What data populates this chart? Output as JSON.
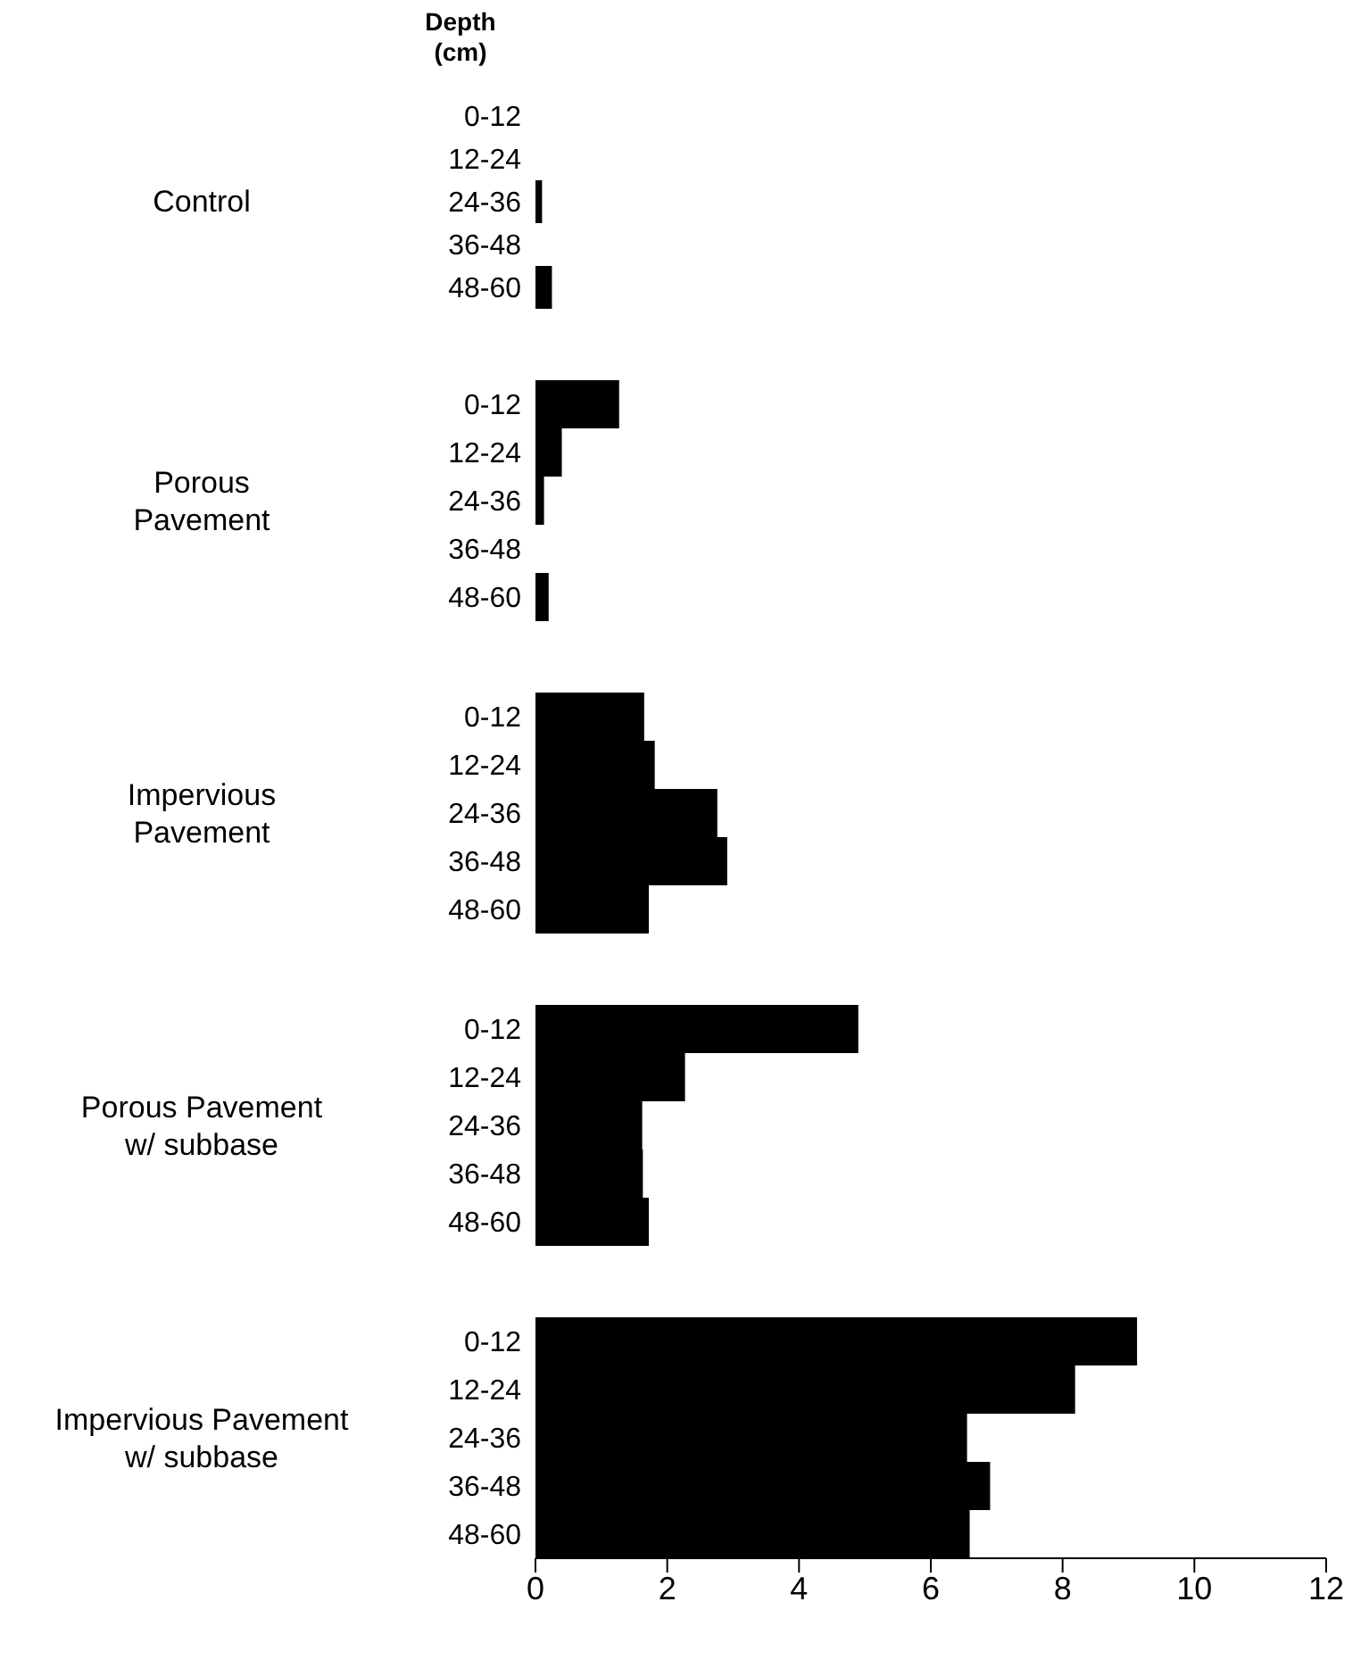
{
  "chart_data": [
    {
      "type": "bar",
      "orientation": "horizontal",
      "ylabel": "Control",
      "annotations": [
        "Depth\n(cm)"
      ],
      "categories": [
        "0-12",
        "12-24",
        "24-36",
        "36-48",
        "48-60"
      ],
      "values": [
        0,
        0,
        0.1,
        0,
        0.25
      ],
      "color": "#000000",
      "xlim": [
        0,
        12
      ],
      "xticks": [
        0,
        2,
        4,
        6,
        8,
        10,
        12
      ],
      "tick_labels": "y",
      "grid": false
    },
    {
      "type": "bar",
      "orientation": "horizontal",
      "ylabel": "Porous\nPavement",
      "categories": [
        "0-12",
        "12-24",
        "24-36",
        "36-48",
        "48-60"
      ],
      "values": [
        1.27,
        0.4,
        0.13,
        0,
        0.2
      ],
      "color": "#000000",
      "xlim": [
        0,
        12
      ],
      "xticks": [
        0,
        2,
        4,
        6,
        8,
        10,
        12
      ],
      "tick_labels": "y",
      "grid": false
    },
    {
      "type": "bar",
      "orientation": "horizontal",
      "ylabel": "Impervious\nPavement",
      "categories": [
        "0-12",
        "12-24",
        "24-36",
        "36-48",
        "48-60"
      ],
      "values": [
        1.65,
        1.81,
        2.76,
        2.91,
        1.72
      ],
      "color": "#000000",
      "xlim": [
        0,
        12
      ],
      "xticks": [
        0,
        2,
        4,
        6,
        8,
        10,
        12
      ],
      "tick_labels": "y",
      "grid": false
    },
    {
      "type": "bar",
      "orientation": "horizontal",
      "ylabel": "Porous Pavement\nw/ subbase",
      "categories": [
        "0-12",
        "12-24",
        "24-36",
        "36-48",
        "48-60"
      ],
      "values": [
        4.9,
        2.27,
        1.62,
        1.63,
        1.72
      ],
      "color": "#000000",
      "xlim": [
        0,
        12
      ],
      "xticks": [
        0,
        2,
        4,
        6,
        8,
        10,
        12
      ],
      "tick_labels": "y",
      "grid": false
    },
    {
      "type": "bar",
      "orientation": "horizontal",
      "ylabel": "Impervious Pavement\nw/ subbase",
      "categories": [
        "0-12",
        "12-24",
        "24-36",
        "36-48",
        "48-60"
      ],
      "values": [
        9.13,
        8.19,
        6.55,
        6.9,
        6.59
      ],
      "color": "#000000",
      "xlim": [
        0,
        12
      ],
      "xticks": [
        0,
        2,
        4,
        6,
        8,
        10,
        12
      ],
      "grid": false
    }
  ]
}
